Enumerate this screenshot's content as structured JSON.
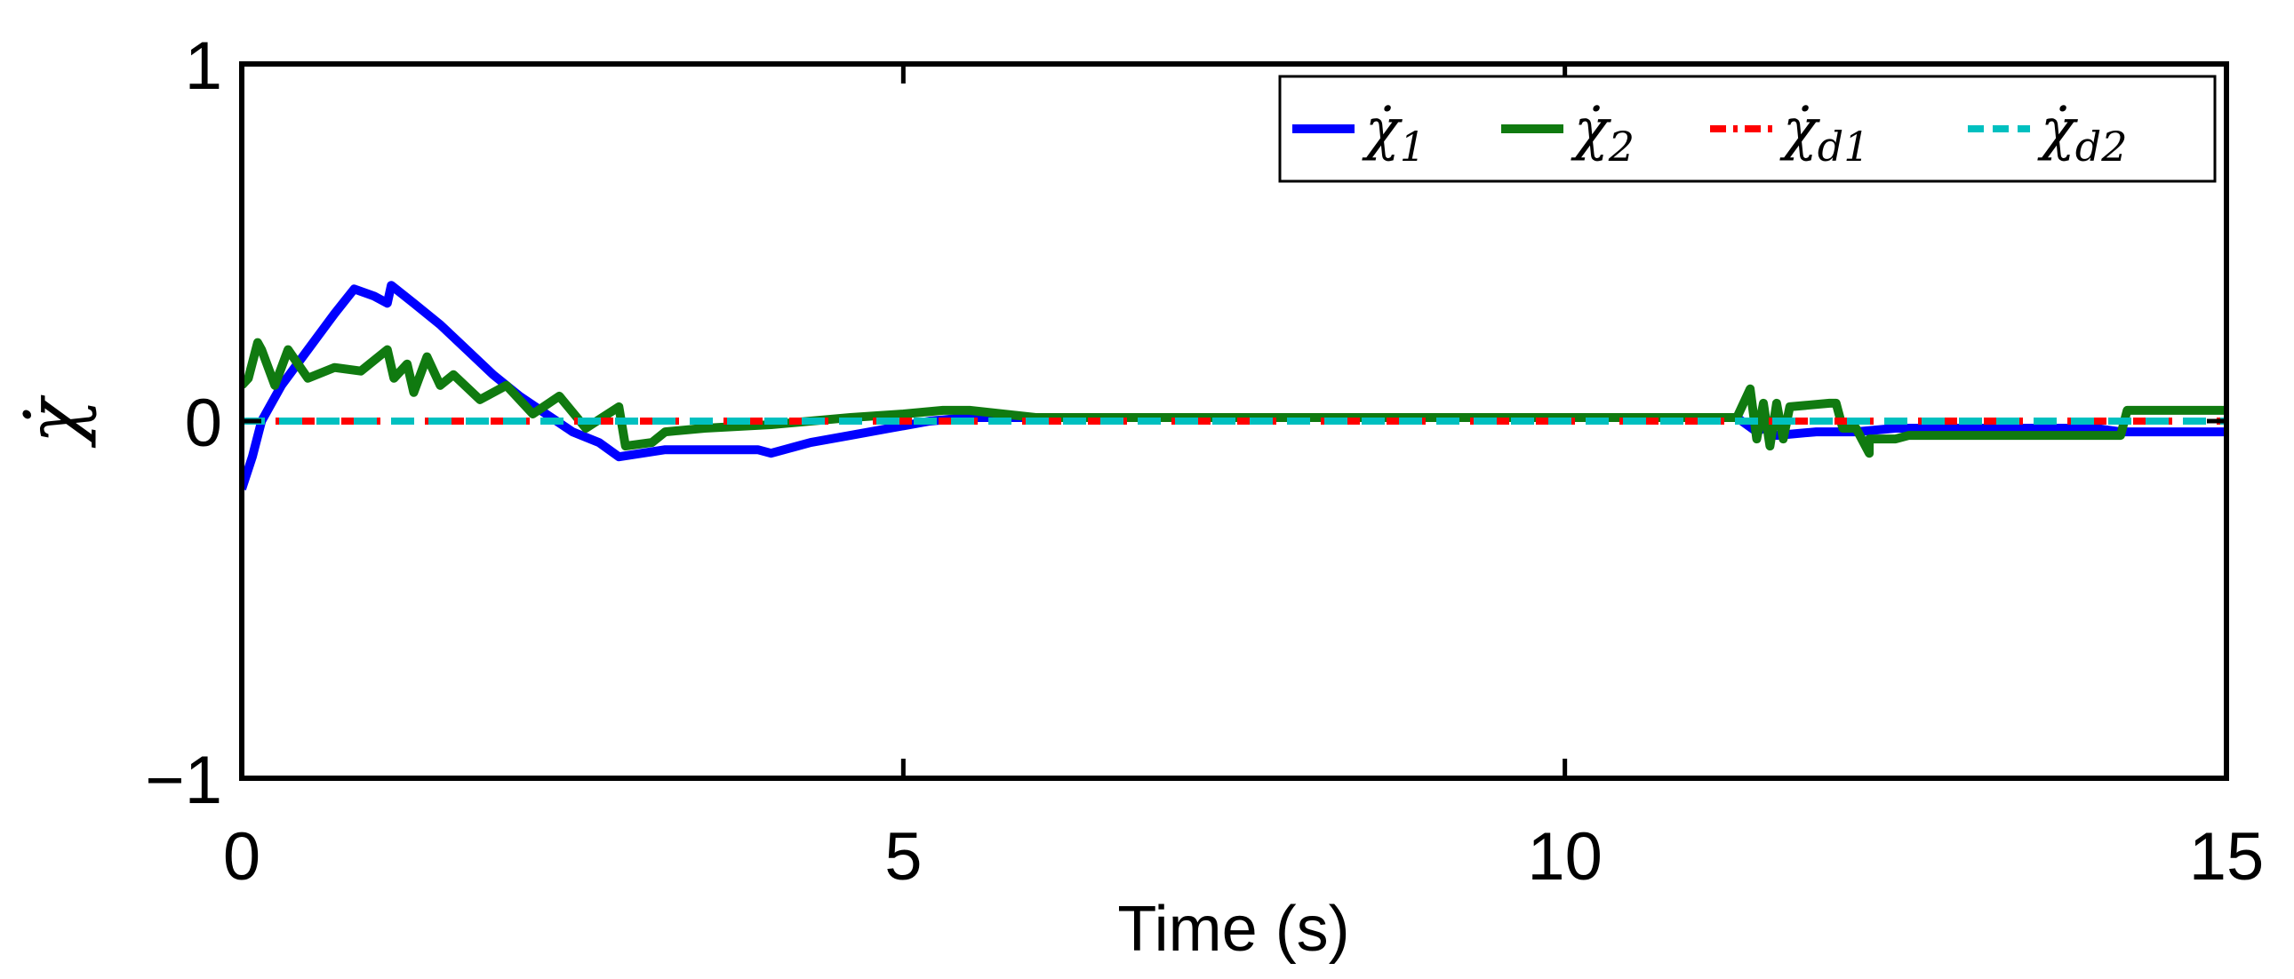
{
  "chart_data": {
    "type": "line",
    "xlabel": "Time (s)",
    "ylabel": "χ̇",
    "xlim": [
      0,
      15
    ],
    "ylim": [
      -1,
      1
    ],
    "xticks": [
      0,
      5,
      10,
      15
    ],
    "xtick_labels": [
      "0",
      "5",
      "10",
      "15"
    ],
    "yticks": [
      -1,
      0,
      1
    ],
    "ytick_labels": [
      "−1",
      "0",
      "1"
    ],
    "grid": false,
    "legend_position": "top-right",
    "series": [
      {
        "name": "χ̇1",
        "legend_base": "χ̇",
        "legend_sub": "1",
        "color": "#0000ff",
        "style": "solid",
        "x": [
          0,
          0.08,
          0.15,
          0.3,
          0.5,
          0.7,
          0.85,
          1.0,
          1.1,
          1.13,
          1.3,
          1.5,
          1.7,
          1.9,
          2.1,
          2.3,
          2.5,
          2.7,
          2.85,
          3.2,
          3.6,
          3.9,
          4.0,
          4.3,
          4.6,
          4.9,
          5.2,
          5.5,
          6,
          8,
          10,
          11.3,
          11.45,
          11.5,
          11.6,
          11.9,
          12.2,
          12.5,
          12.6,
          13,
          14,
          14.2,
          15
        ],
        "y": [
          -0.19,
          -0.1,
          0.0,
          0.1,
          0.2,
          0.3,
          0.37,
          0.35,
          0.33,
          0.38,
          0.33,
          0.27,
          0.2,
          0.13,
          0.07,
          0.02,
          -0.03,
          -0.06,
          -0.1,
          -0.08,
          -0.08,
          -0.08,
          -0.09,
          -0.06,
          -0.04,
          -0.02,
          0.0,
          0.01,
          0.01,
          0.01,
          0.01,
          0.01,
          -0.03,
          -0.02,
          -0.04,
          -0.03,
          -0.03,
          -0.02,
          -0.02,
          -0.02,
          -0.02,
          -0.03,
          -0.03
        ]
      },
      {
        "name": "χ̇2",
        "legend_base": "χ̇",
        "legend_sub": "2",
        "color": "#107a10",
        "style": "solid",
        "x": [
          0,
          0.05,
          0.12,
          0.15,
          0.25,
          0.35,
          0.5,
          0.7,
          0.9,
          1.1,
          1.15,
          1.25,
          1.3,
          1.4,
          1.5,
          1.6,
          1.8,
          2.0,
          2.2,
          2.4,
          2.6,
          2.85,
          2.9,
          3.1,
          3.2,
          3.5,
          4.0,
          4.3,
          4.6,
          5.0,
          5.3,
          5.5,
          6,
          8,
          10,
          11.3,
          11.4,
          11.45,
          11.5,
          11.55,
          11.6,
          11.65,
          11.7,
          12.0,
          12.05,
          12.1,
          12.2,
          12.3,
          12.3,
          12.5,
          12.6,
          12.7,
          13,
          14.2,
          14.25,
          15
        ],
        "y": [
          0.1,
          0.12,
          0.22,
          0.2,
          0.1,
          0.2,
          0.12,
          0.15,
          0.14,
          0.2,
          0.12,
          0.16,
          0.08,
          0.18,
          0.1,
          0.13,
          0.06,
          0.1,
          0.02,
          0.07,
          -0.02,
          0.04,
          -0.07,
          -0.06,
          -0.03,
          -0.02,
          -0.01,
          0.0,
          0.01,
          0.02,
          0.03,
          0.03,
          0.01,
          0.01,
          0.01,
          0.01,
          0.09,
          -0.05,
          0.05,
          -0.07,
          0.05,
          -0.05,
          0.04,
          0.05,
          0.05,
          -0.02,
          -0.02,
          -0.09,
          -0.05,
          -0.05,
          -0.04,
          -0.04,
          -0.04,
          -0.04,
          0.03,
          0.03
        ]
      },
      {
        "name": "χ̇d1",
        "legend_base": "χ̇",
        "legend_sub": "d1",
        "color": "#ff0000",
        "style": "dashdot",
        "x": [
          0,
          15
        ],
        "y": [
          0,
          0
        ]
      },
      {
        "name": "χ̇d2",
        "legend_base": "χ̇",
        "legend_sub": "d2",
        "color": "#00c0c0",
        "style": "dashed",
        "x": [
          0,
          15
        ],
        "y": [
          0,
          0
        ]
      }
    ]
  }
}
